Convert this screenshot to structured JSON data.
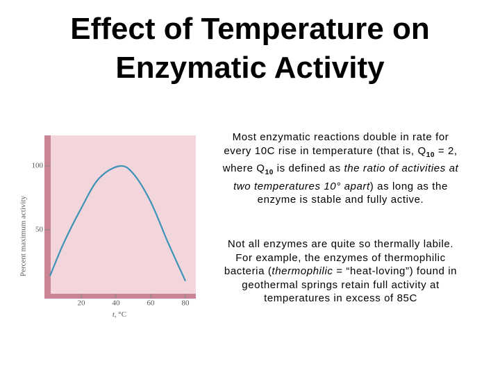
{
  "title": "Effect of Temperature on Enzymatic Activity",
  "text": {
    "paragraph1": [
      "Most enzymatic reactions double in rate for every 10C rise in temperature (that is, Q",
      "10",
      " = 2, where Q",
      "10",
      " is defined as ",
      "the ratio of activities at two temperatures 10° apart",
      ") as long as the enzyme is stable and fully active."
    ],
    "paragraph2": [
      "Not all enzymes are quite so thermally labile. For example, the enzymes of thermophilic bacteria (",
      "thermophilic",
      " = “heat-loving”) found in geothermal springs retain full activity at temperatures in excess of 85C"
    ]
  },
  "chart_data": {
    "type": "line",
    "x_label_var": "t",
    "x_label": ", °C",
    "y_label": "Percent maximum activity",
    "x": [
      2,
      10,
      20,
      30,
      42,
      50,
      60,
      70,
      80
    ],
    "values": [
      14,
      40,
      67,
      90,
      100,
      94,
      72,
      40,
      10
    ],
    "color": "#3d93b5",
    "xlim": [
      0,
      86
    ],
    "ylim": [
      0,
      124
    ],
    "xticks": [
      20,
      40,
      60,
      80
    ],
    "yticks": [
      50,
      100
    ]
  }
}
